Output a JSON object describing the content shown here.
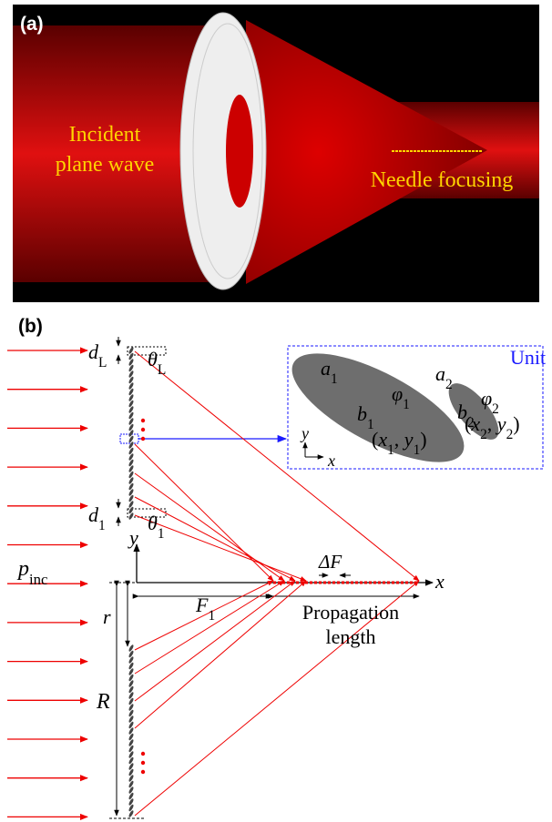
{
  "panel_a": {
    "label": "(a)",
    "left_text": [
      "Incident",
      "plane wave"
    ],
    "right_text": "Needle focusing"
  },
  "panel_b": {
    "label": "(b)",
    "unit_title": "Unit",
    "d_L": {
      "base": "d",
      "sub": "L"
    },
    "theta_L": {
      "base": "θ",
      "sub": "L"
    },
    "d_1": {
      "base": "d",
      "sub": "1"
    },
    "theta_1": {
      "base": "θ",
      "sub": "1"
    },
    "y_axis": "y",
    "x_axis": "x",
    "p_inc": {
      "base": "p",
      "sub": "inc"
    },
    "F_1": {
      "base": "F",
      "sub": "1"
    },
    "delta_F": "ΔF",
    "propagation": [
      "Propagation",
      "length"
    ],
    "r": "r",
    "R": "R",
    "a_1": {
      "base": "a",
      "sub": "1"
    },
    "b_1": {
      "base": "b",
      "sub": "1"
    },
    "phi_1": {
      "base": "φ",
      "sub": "1"
    },
    "a_2": {
      "base": "a",
      "sub": "2"
    },
    "b_2": {
      "base": "b",
      "sub": "2"
    },
    "phi_2": {
      "base": "φ",
      "sub": "2"
    },
    "coord_1": [
      "(",
      {
        "base": "x",
        "sub": "1"
      },
      ", ",
      {
        "base": "y",
        "sub": "1"
      },
      ")"
    ],
    "coord_2": [
      "(",
      {
        "base": "x",
        "sub": "2"
      },
      ", ",
      {
        "base": "y",
        "sub": "2"
      },
      ")"
    ],
    "unit_y": "y",
    "unit_x": "x"
  }
}
